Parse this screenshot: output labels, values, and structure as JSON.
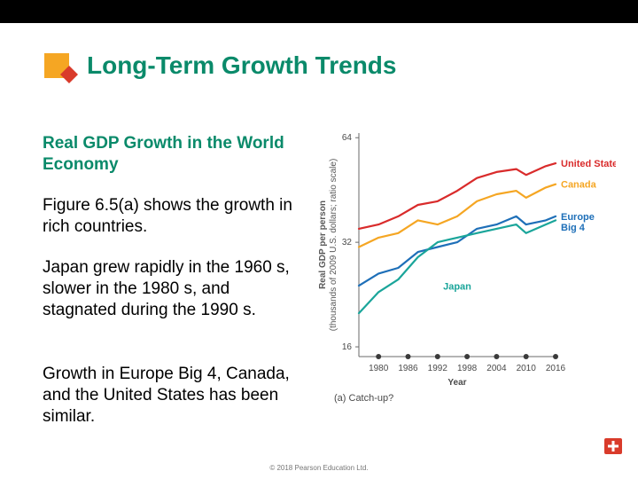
{
  "title": "Long-Term Growth Trends",
  "title_color": "#0a8a6a",
  "subheading": "Real GDP Growth in the World Economy",
  "subheading_color": "#0a8a6a",
  "para1": "Figure 6.5(a) shows the growth in rich countries.",
  "para2": "Japan grew rapidly in the 1960 s, slower in the 1980 s, and stagnated during the 1990 s.",
  "para3": "Growth in Europe Big 4, Canada, and the United States has been similar.",
  "footer": "© 2018 Pearson Education Ltd.",
  "title_icon": {
    "square_fill": "#f5a623",
    "diamond_fill": "#d93b2b"
  },
  "chart": {
    "type": "line",
    "y_label": "Real GDP per person\n(thousands of 2009 U.S. dollars; ratio scale)",
    "x_label": "Year",
    "caption": "(a) Catch-up?",
    "x_ticks": [
      1980,
      1986,
      1992,
      1998,
      2004,
      2010,
      2016
    ],
    "y_ticks": [
      16,
      32,
      64
    ],
    "xlim": [
      1976,
      2016
    ],
    "ylim_log": [
      15,
      66
    ],
    "tick_dot_color": "#3a3a3a",
    "tick_dot_radius": 3,
    "axis_color": "#6a6a6a",
    "axis_label_fontsize": 10,
    "tick_fontsize": 10,
    "line_width": 2.2,
    "series": [
      {
        "name": "United States",
        "label": "United States",
        "color": "#d92b2b",
        "label_pos": "right",
        "points": [
          [
            1976,
            35
          ],
          [
            1980,
            36
          ],
          [
            1984,
            38
          ],
          [
            1988,
            41
          ],
          [
            1992,
            42
          ],
          [
            1996,
            45
          ],
          [
            2000,
            49
          ],
          [
            2004,
            51
          ],
          [
            2008,
            52
          ],
          [
            2010,
            50
          ],
          [
            2014,
            53
          ],
          [
            2016,
            54
          ]
        ]
      },
      {
        "name": "Canada",
        "label": "Canada",
        "color": "#f5a623",
        "label_pos": "right",
        "points": [
          [
            1976,
            31
          ],
          [
            1980,
            33
          ],
          [
            1984,
            34
          ],
          [
            1988,
            37
          ],
          [
            1992,
            36
          ],
          [
            1996,
            38
          ],
          [
            2000,
            42
          ],
          [
            2004,
            44
          ],
          [
            2008,
            45
          ],
          [
            2010,
            43
          ],
          [
            2014,
            46
          ],
          [
            2016,
            47
          ]
        ]
      },
      {
        "name": "Europe Big 4",
        "label": "Europe\nBig 4",
        "color": "#1e6fb8",
        "label_pos": "right",
        "points": [
          [
            1976,
            24
          ],
          [
            1980,
            26
          ],
          [
            1984,
            27
          ],
          [
            1988,
            30
          ],
          [
            1992,
            31
          ],
          [
            1996,
            32
          ],
          [
            2000,
            35
          ],
          [
            2004,
            36
          ],
          [
            2008,
            38
          ],
          [
            2010,
            36
          ],
          [
            2014,
            37
          ],
          [
            2016,
            38
          ]
        ]
      },
      {
        "name": "Japan",
        "label": "Japan",
        "color": "#1aa59a",
        "label_pos": "inside",
        "label_xy": [
          1996,
          26
        ],
        "points": [
          [
            1976,
            20
          ],
          [
            1980,
            23
          ],
          [
            1984,
            25
          ],
          [
            1988,
            29
          ],
          [
            1992,
            32
          ],
          [
            1996,
            33
          ],
          [
            2000,
            34
          ],
          [
            2004,
            35
          ],
          [
            2008,
            36
          ],
          [
            2010,
            34
          ],
          [
            2014,
            36
          ],
          [
            2016,
            37
          ]
        ]
      }
    ]
  },
  "corner_icon": {
    "bg": "#d93b2b",
    "plus": "#ffffff"
  }
}
